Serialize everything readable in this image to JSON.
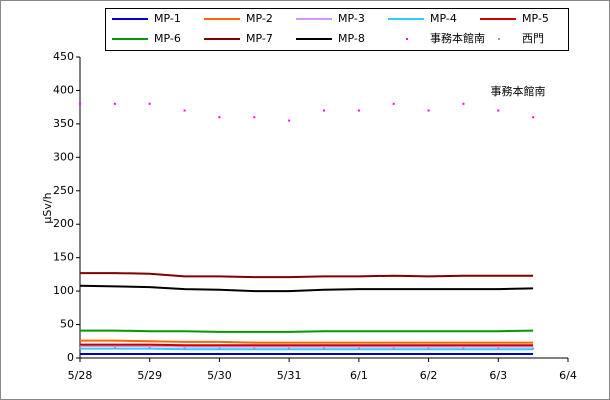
{
  "chart_data": {
    "type": "line",
    "ylabel": "μSv/h",
    "annotation": "事務本館南",
    "x": [
      0,
      0.5,
      1,
      1.5,
      2,
      2.5,
      3,
      3.5,
      4,
      4.5,
      5,
      5.5,
      6,
      6.5
    ],
    "xlim": [
      0,
      7
    ],
    "xticks": [
      {
        "value": 0,
        "label": "5/28"
      },
      {
        "value": 1,
        "label": "5/29"
      },
      {
        "value": 2,
        "label": "5/30"
      },
      {
        "value": 3,
        "label": "5/31"
      },
      {
        "value": 4,
        "label": "6/1"
      },
      {
        "value": 5,
        "label": "6/2"
      },
      {
        "value": 6,
        "label": "6/3"
      },
      {
        "value": 7,
        "label": "6/4"
      }
    ],
    "ylim": [
      0,
      450
    ],
    "yticks": [
      0,
      50,
      100,
      150,
      200,
      250,
      300,
      350,
      400,
      450
    ],
    "grid": false,
    "series": [
      {
        "name": "MP-1",
        "color": "#0000cc",
        "style": "line",
        "values": [
          6,
          6,
          6,
          6,
          6,
          6,
          6,
          6,
          6,
          6,
          6,
          6,
          6,
          6
        ]
      },
      {
        "name": "MP-2",
        "color": "#ff6600",
        "style": "line",
        "values": [
          26,
          26,
          25,
          24,
          24,
          23,
          23,
          23,
          23,
          23,
          23,
          23,
          23,
          23
        ]
      },
      {
        "name": "MP-3",
        "color": "#cc99ff",
        "style": "line",
        "values": [
          18,
          18,
          18,
          17,
          17,
          17,
          17,
          17,
          17,
          17,
          17,
          17,
          17,
          17
        ]
      },
      {
        "name": "MP-4",
        "color": "#33ccff",
        "style": "line",
        "values": [
          14,
          14,
          14,
          13,
          13,
          13,
          13,
          13,
          13,
          13,
          13,
          13,
          13,
          13
        ]
      },
      {
        "name": "MP-5",
        "color": "#cc0000",
        "style": "line",
        "values": [
          20,
          20,
          20,
          19,
          19,
          19,
          19,
          19,
          19,
          19,
          19,
          19,
          19,
          19
        ]
      },
      {
        "name": "MP-6",
        "color": "#009900",
        "style": "line",
        "values": [
          41,
          41,
          40,
          40,
          39,
          39,
          39,
          40,
          40,
          40,
          40,
          40,
          40,
          41
        ]
      },
      {
        "name": "MP-7",
        "color": "#800000",
        "style": "line",
        "values": [
          127,
          127,
          126,
          122,
          122,
          121,
          121,
          122,
          122,
          123,
          122,
          123,
          123,
          123
        ]
      },
      {
        "name": "MP-8",
        "color": "#000000",
        "style": "line",
        "values": [
          108,
          107,
          106,
          103,
          102,
          100,
          100,
          102,
          103,
          103,
          103,
          103,
          103,
          104
        ]
      },
      {
        "name": "事務本館南",
        "color": "#ff00ff",
        "style": "dots",
        "values": [
          380,
          380,
          380,
          370,
          360,
          360,
          355,
          370,
          370,
          380,
          370,
          380,
          370,
          360
        ]
      },
      {
        "name": "西門",
        "color": "#999999",
        "style": "dots",
        "values": [
          15,
          15,
          15,
          14,
          14,
          14,
          14,
          14,
          14,
          14,
          14,
          14,
          14,
          14
        ]
      }
    ]
  }
}
